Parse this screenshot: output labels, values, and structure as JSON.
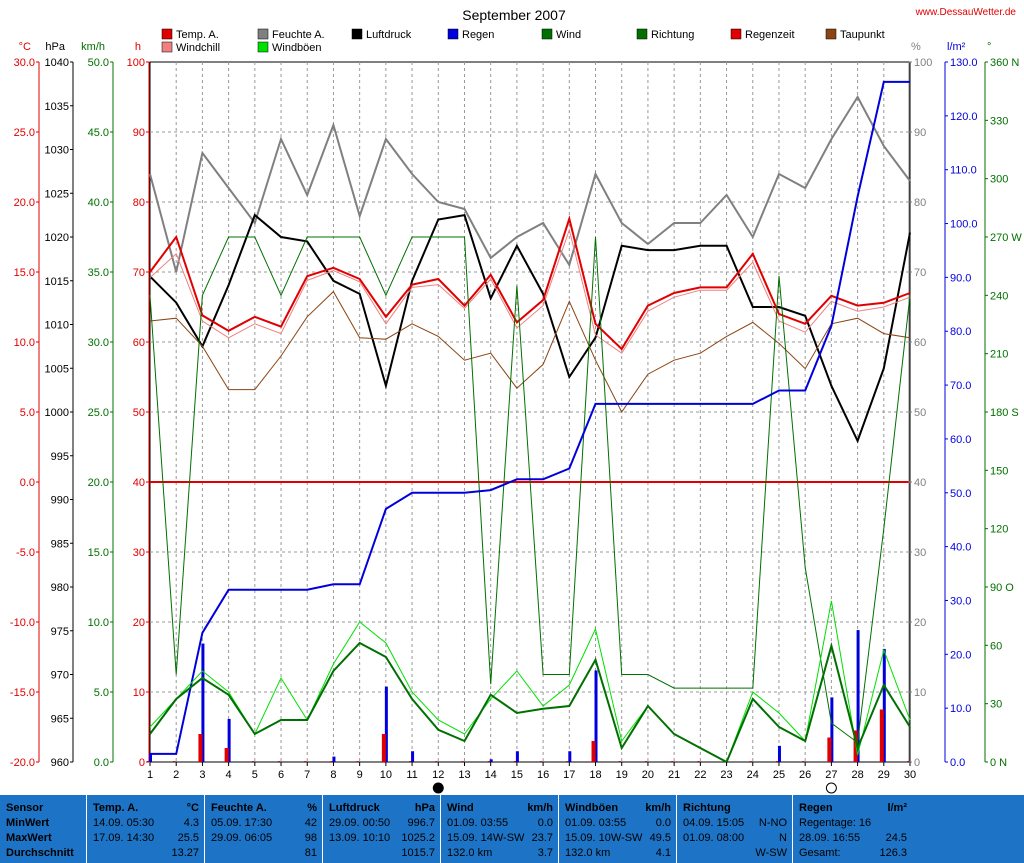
{
  "page": {
    "title": "September 2007",
    "site_link": "www.DessauWetter.de"
  },
  "legend": [
    {
      "label": "Temp. A.",
      "color": "#e00000"
    },
    {
      "label": "Windchill",
      "color": "#f08080"
    },
    {
      "label": "Feuchte A.",
      "color": "#808080"
    },
    {
      "label": "Windböen",
      "color": "#00e000"
    },
    {
      "label": "Luftdruck",
      "color": "#000000"
    },
    {
      "label": "Regen",
      "color": "#0000dd"
    },
    {
      "label": "Wind",
      "color": "#007000"
    },
    {
      "label": "Richtung",
      "color": "#007000"
    },
    {
      "label": "Regenzeit",
      "color": "#e00000"
    },
    {
      "label": "Taupunkt",
      "color": "#8b4513"
    }
  ],
  "chart_data": {
    "type": "line",
    "title": "September 2007",
    "x": [
      1,
      2,
      3,
      4,
      5,
      6,
      7,
      8,
      9,
      10,
      11,
      12,
      13,
      14,
      15,
      16,
      17,
      18,
      19,
      20,
      21,
      22,
      23,
      24,
      25,
      26,
      27,
      28,
      29,
      30
    ],
    "x_ticks": [
      "1",
      "2",
      "3",
      "4",
      "5",
      "6",
      "7",
      "8",
      "9",
      "10",
      "11",
      "12",
      "13",
      "14",
      "15",
      "16",
      "17",
      "18",
      "19",
      "20",
      "21",
      "22",
      "23",
      "24",
      "25",
      "26",
      "27",
      "28",
      "29",
      "30"
    ],
    "axes": {
      "temp": {
        "unit": "°C",
        "range": [
          -20,
          30
        ],
        "ticks": [
          "-20.0",
          "-15.0",
          "-10.0",
          "-5.0",
          "0.0",
          "5.0",
          "10.0",
          "15.0",
          "20.0",
          "25.0",
          "30.0"
        ],
        "color": "#e00000"
      },
      "pressure": {
        "unit": "hPa",
        "range": [
          960,
          1040
        ],
        "ticks": [
          "960",
          "965",
          "970",
          "975",
          "980",
          "985",
          "990",
          "995",
          "1000",
          "1005",
          "1010",
          "1015",
          "1020",
          "1025",
          "1030",
          "1035",
          "1040"
        ],
        "color": "#000000"
      },
      "wind": {
        "unit": "km/h",
        "range": [
          0,
          50
        ],
        "ticks": [
          "0.0",
          "5.0",
          "10.0",
          "15.0",
          "20.0",
          "25.0",
          "30.0",
          "35.0",
          "40.0",
          "45.0",
          "50.0"
        ],
        "color": "#007000"
      },
      "hours": {
        "unit": "h",
        "range": [
          0,
          100
        ],
        "ticks": [
          "0",
          "10",
          "20",
          "30",
          "40",
          "50",
          "60",
          "70",
          "80",
          "90",
          "100"
        ],
        "color": "#e00000"
      },
      "humidity": {
        "unit": "%",
        "range": [
          0,
          100
        ],
        "ticks": [
          "0",
          "10",
          "20",
          "30",
          "40",
          "50",
          "60",
          "70",
          "80",
          "90",
          "100"
        ],
        "color": "#808080"
      },
      "rain": {
        "unit": "l/m²",
        "range": [
          0,
          130
        ],
        "ticks": [
          "0.0",
          "10.0",
          "20.0",
          "30.0",
          "40.0",
          "50.0",
          "60.0",
          "70.0",
          "80.0",
          "90.0",
          "100.0",
          "110.0",
          "120.0",
          "130.0"
        ],
        "color": "#0000dd"
      },
      "direction": {
        "unit": "°",
        "range": [
          0,
          360
        ],
        "ticks": [
          "0 N",
          "30",
          "60",
          "90 O",
          "120",
          "150",
          "180 S",
          "210",
          "240",
          "270 W",
          "300",
          "330",
          "360 N"
        ],
        "color": "#007000"
      }
    },
    "series": [
      {
        "name": "Feuchte A.",
        "axis": "humidity",
        "color": "#808080",
        "width": 2,
        "values": [
          84,
          70,
          87,
          82,
          77,
          89,
          81,
          91,
          78,
          89,
          84,
          80,
          79,
          72,
          75,
          77,
          71,
          84,
          77,
          74,
          77,
          77,
          81,
          75,
          84,
          82,
          89,
          95,
          88,
          83
        ]
      },
      {
        "name": "Luftdruck",
        "axis": "pressure",
        "color": "#000000",
        "width": 2,
        "values": [
          1015.5,
          1012.5,
          1007.5,
          1014.5,
          1022.5,
          1020,
          1019.5,
          1015,
          1013.5,
          1003,
          1015,
          1022,
          1022.5,
          1013,
          1019,
          1013.5,
          1004,
          1008.5,
          1019,
          1018.5,
          1018.5,
          1019,
          1019,
          1012,
          1012,
          1011,
          1003,
          996.7,
          1005,
          1020.5
        ]
      },
      {
        "name": "Windchill",
        "axis": "temp",
        "color": "#f08080",
        "width": 1,
        "values": [
          14.6,
          16.3,
          11.5,
          10.3,
          11.3,
          10.6,
          14.4,
          15.1,
          14.3,
          11.3,
          13.9,
          14.1,
          12.4,
          14.5,
          11,
          12.6,
          18,
          10.5,
          9.2,
          12.2,
          13.2,
          13.7,
          13.7,
          15.7,
          11.5,
          10.7,
          12.9,
          12.2,
          12.5,
          13.2
        ]
      },
      {
        "name": "Temp. A.",
        "axis": "temp",
        "color": "#e00000",
        "width": 2,
        "values": [
          15,
          17.5,
          11.9,
          10.8,
          11.8,
          11.1,
          14.7,
          15.3,
          14.5,
          11.8,
          14.1,
          14.5,
          12.6,
          14.8,
          11.4,
          13,
          18.8,
          11.3,
          9.5,
          12.6,
          13.5,
          13.9,
          13.9,
          16.3,
          12,
          11.3,
          13.3,
          12.6,
          12.8,
          13.5
        ]
      },
      {
        "name": "Taupunkt",
        "axis": "temp",
        "color": "#8b4513",
        "width": 1,
        "values": [
          11.5,
          11.7,
          9.7,
          6.6,
          6.6,
          9,
          11.8,
          13.6,
          10.3,
          10.2,
          11.3,
          10.4,
          8.7,
          9.2,
          6.7,
          8.4,
          12.9,
          8.7,
          5,
          7.7,
          8.7,
          9.2,
          10.4,
          11.4,
          9.9,
          8.1,
          11.3,
          11.7,
          10.6,
          10.3
        ]
      },
      {
        "name": "Richtung",
        "axis": "direction",
        "color": "#007000",
        "width": 1,
        "values": [
          240,
          45,
          240,
          270,
          270,
          240,
          270,
          270,
          270,
          240,
          270,
          270,
          270,
          40,
          245,
          45,
          45,
          270,
          45,
          45,
          38,
          38,
          38,
          38,
          250,
          100,
          20,
          10,
          120,
          240
        ]
      },
      {
        "name": "Regen",
        "axis": "rain",
        "color": "#0000dd",
        "width": 2,
        "step": true,
        "values": [
          1.5,
          1.5,
          24,
          32,
          32,
          32,
          32,
          33,
          33,
          47,
          50,
          50,
          50,
          50.5,
          52.5,
          52.5,
          54.5,
          66.5,
          66.5,
          66.5,
          66.5,
          66.5,
          66.5,
          66.5,
          69,
          69,
          81,
          105,
          126.3,
          126.3
        ]
      },
      {
        "name": "Windböen",
        "axis": "wind",
        "color": "#00e000",
        "width": 1,
        "values": [
          2.5,
          4.5,
          6.5,
          5,
          2,
          6,
          3,
          7,
          10,
          8.5,
          5,
          3,
          2,
          4.5,
          6.5,
          4,
          5.5,
          9.5,
          1.5,
          4,
          2,
          1,
          0,
          5,
          3.5,
          1.5,
          11.5,
          0.5,
          8,
          3
        ]
      },
      {
        "name": "Wind",
        "axis": "wind",
        "color": "#007000",
        "width": 2,
        "values": [
          2,
          4.5,
          6,
          4.8,
          2,
          3,
          3,
          6.5,
          8.5,
          7.5,
          4.5,
          2.3,
          1.5,
          4.8,
          3.5,
          3.8,
          4,
          7.3,
          1,
          4,
          2,
          1,
          0,
          4.5,
          2.5,
          1.5,
          8.3,
          1,
          5.5,
          2.5
        ]
      }
    ],
    "rain_bars": {
      "axis": "rain",
      "color": "#0000dd",
      "values": [
        1.5,
        0,
        22,
        8,
        0,
        0,
        0,
        1,
        0,
        14,
        2,
        0,
        0,
        0.5,
        2,
        0,
        2,
        17,
        0,
        0,
        0,
        0,
        0,
        0,
        3,
        0,
        12,
        24.5,
        21,
        0
      ]
    },
    "rain_time_bars": {
      "axis": "hours",
      "color": "#e00000",
      "values": [
        0,
        0,
        4,
        2,
        0,
        0,
        0,
        0,
        0,
        4,
        0,
        0,
        0,
        0,
        0,
        0,
        0,
        3,
        0,
        0,
        0,
        0,
        0,
        0,
        0,
        0,
        3.5,
        4.5,
        7.5,
        0
      ]
    },
    "moon_phases": [
      {
        "day": 12,
        "phase": "new"
      },
      {
        "day": 27,
        "phase": "full"
      }
    ]
  },
  "summary": {
    "labels": [
      "Sensor",
      "MinWert",
      "MaxWert",
      "Durchschnitt"
    ],
    "columns": [
      {
        "title": "Temp. A.",
        "unit": "°C",
        "min_time": "14.09.  05:30",
        "min": "4.3",
        "max_time": "17.09.  14:30",
        "max": "25.5",
        "avg_time": "",
        "avg": "13.27"
      },
      {
        "title": "Feuchte A.",
        "unit": "%",
        "min_time": "05.09.  17:30",
        "min": "42",
        "max_time": "29.09.  06:05",
        "max": "98",
        "avg_time": "",
        "avg": "81"
      },
      {
        "title": "Luftdruck",
        "unit": "hPa",
        "min_time": "29.09.  00:50",
        "min": "996.7",
        "max_time": "13.09.  10:10",
        "max": "1025.2",
        "avg_time": "",
        "avg": "1015.7"
      },
      {
        "title": "Wind",
        "unit": "km/h",
        "min_time": "01.09.  03:55",
        "min": "0.0",
        "max_time": "15.09.  14W-SW",
        "max": "23.7",
        "avg_time": "132.0 km",
        "avg": "3.7"
      },
      {
        "title": "Windböen",
        "unit": "km/h",
        "min_time": "01.09.  03:55",
        "min": "0.0",
        "max_time": "15.09.  10W-SW",
        "max": "49.5",
        "avg_time": "132.0 km",
        "avg": "4.1"
      },
      {
        "title": "Richtung",
        "unit": "",
        "min_time": "04.09.  15:05",
        "min": "N-NO",
        "max_time": "01.09.  08:00",
        "max": "N",
        "avg_time": "",
        "avg": "W-SW"
      },
      {
        "title": "Regen",
        "unit": "l/m²",
        "min_time": "Regentage: 16",
        "min": "",
        "max_time": "28.09.  16:55",
        "max": "24.5",
        "avg_time": "Gesamt:",
        "avg": "126.3"
      }
    ]
  }
}
